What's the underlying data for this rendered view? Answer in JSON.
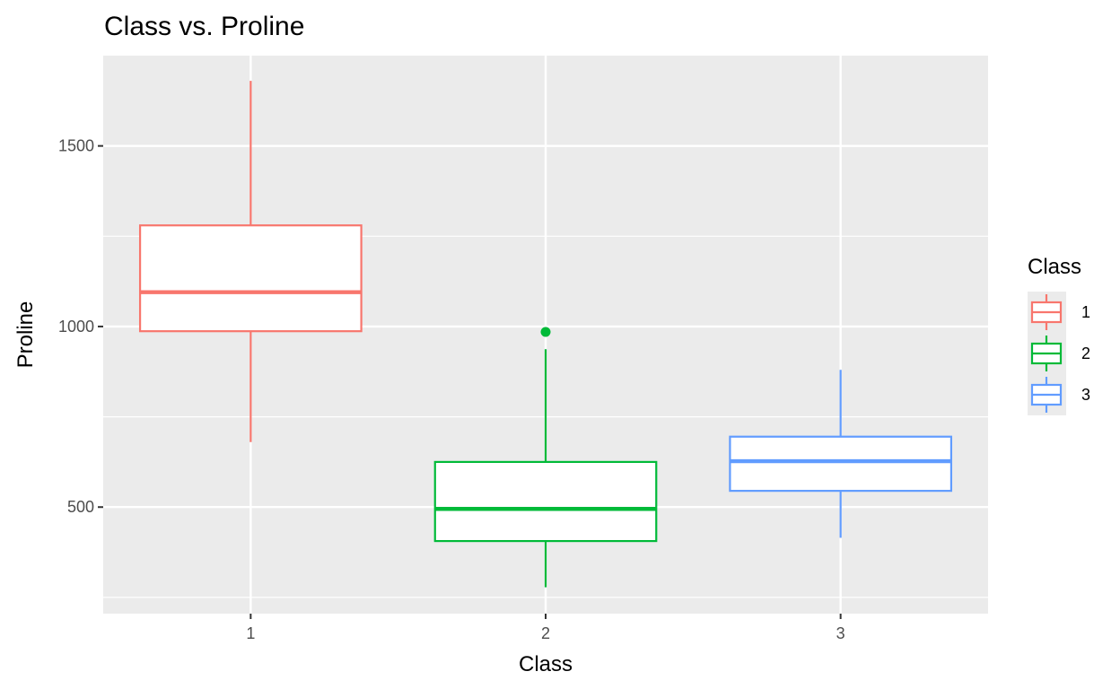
{
  "chart_data": {
    "type": "boxplot",
    "title": "Class vs. Proline",
    "xlabel": "Class",
    "ylabel": "Proline",
    "categories": [
      "1",
      "2",
      "3"
    ],
    "y_ticks": [
      500,
      1000,
      1500
    ],
    "y_minor_ticks": [
      250,
      750,
      1250
    ],
    "ylim": [
      205,
      1750
    ],
    "grid": true,
    "legend": {
      "title": "Class",
      "position": "right",
      "entries": [
        "1",
        "2",
        "3"
      ]
    },
    "colors": [
      "#F8766D",
      "#00BA38",
      "#619CFF"
    ],
    "boxes": [
      {
        "category": "1",
        "whisker_low": 680,
        "q1": 987,
        "median": 1095,
        "q3": 1280,
        "whisker_high": 1680,
        "outliers": []
      },
      {
        "category": "2",
        "whisker_low": 278,
        "q1": 406,
        "median": 495,
        "q3": 625,
        "whisker_high": 937,
        "outliers": [
          985
        ]
      },
      {
        "category": "3",
        "whisker_low": 415,
        "q1": 545,
        "median": 627,
        "q3": 695,
        "whisker_high": 880,
        "outliers": []
      }
    ]
  }
}
